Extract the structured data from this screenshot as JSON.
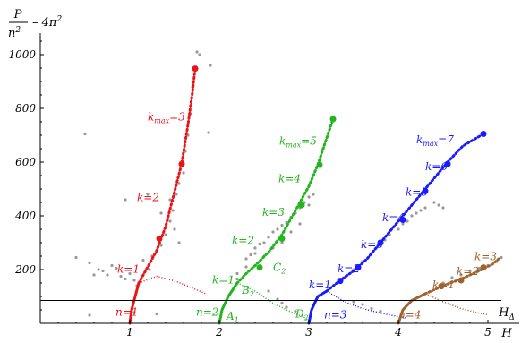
{
  "chart_data": {
    "type": "line",
    "title": "",
    "x_axis": {
      "label_num": "H",
      "label_num_sub": "Δ",
      "label_den": "H",
      "range": [
        0,
        5.15
      ],
      "ticks": [
        1,
        2,
        3,
        4,
        5
      ],
      "tick_labels": [
        "1",
        "2",
        "3",
        "4",
        "5"
      ]
    },
    "y_axis": {
      "label_num": "P",
      "label_den": "n",
      "label_den_sup": "2",
      "label_suffix": "– 4π",
      "label_suffix_sup": "2",
      "range": [
        0,
        1080
      ],
      "ticks": [
        200,
        400,
        600,
        800,
        1000
      ],
      "tick_labels": [
        "200",
        "400",
        "600",
        "800",
        "1000"
      ]
    },
    "threshold_y": 85,
    "series": [
      {
        "n": 1,
        "color": "#e8141a",
        "solid": [
          [
            1.0,
            0
          ],
          [
            1.02,
            50
          ],
          [
            1.06,
            100
          ],
          [
            1.1,
            150
          ]
        ],
        "dotted_up": [
          [
            1.1,
            150
          ],
          [
            1.2,
            210
          ],
          [
            1.3,
            270
          ],
          [
            1.4,
            360
          ],
          [
            1.5,
            490
          ],
          [
            1.58,
            595
          ],
          [
            1.65,
            740
          ],
          [
            1.7,
            860
          ],
          [
            1.73,
            950
          ]
        ],
        "dotted_down": [
          [
            1.1,
            150
          ],
          [
            1.3,
            175
          ],
          [
            1.5,
            158
          ],
          [
            1.65,
            138
          ],
          [
            1.78,
            120
          ],
          [
            1.85,
            110
          ]
        ],
        "markers": [
          [
            1.33,
            315
          ],
          [
            1.58,
            593
          ],
          [
            1.73,
            948
          ]
        ]
      },
      {
        "n": 2,
        "color": "#22b51e",
        "solid": [
          [
            2.0,
            0
          ],
          [
            2.03,
            50
          ],
          [
            2.1,
            100
          ],
          [
            2.2,
            150
          ]
        ],
        "dotted_up": [
          [
            2.2,
            150
          ],
          [
            2.3,
            185
          ],
          [
            2.4,
            215
          ],
          [
            2.55,
            265
          ],
          [
            2.7,
            330
          ],
          [
            2.85,
            420
          ],
          [
            3.0,
            510
          ],
          [
            3.1,
            590
          ],
          [
            3.18,
            670
          ],
          [
            3.27,
            760
          ]
        ],
        "dotted_down": [
          [
            2.2,
            150
          ],
          [
            2.4,
            120
          ],
          [
            2.6,
            75
          ],
          [
            2.8,
            42
          ],
          [
            2.95,
            22
          ],
          [
            3.0,
            10
          ]
        ],
        "markers": [
          [
            2.45,
            208
          ],
          [
            2.7,
            315
          ],
          [
            2.92,
            440
          ],
          [
            3.12,
            590
          ],
          [
            3.27,
            760
          ]
        ]
      },
      {
        "n": 3,
        "color": "#1a1aff",
        "solid": [
          [
            3.0,
            0
          ],
          [
            3.03,
            50
          ],
          [
            3.1,
            100
          ],
          [
            3.2,
            120
          ]
        ],
        "dotted_up": [
          [
            3.2,
            120
          ],
          [
            3.35,
            160
          ],
          [
            3.5,
            195
          ],
          [
            3.65,
            240
          ],
          [
            3.8,
            300
          ],
          [
            3.95,
            360
          ],
          [
            4.1,
            420
          ],
          [
            4.25,
            480
          ],
          [
            4.4,
            540
          ],
          [
            4.55,
            600
          ],
          [
            4.72,
            660
          ],
          [
            4.95,
            705
          ]
        ],
        "dotted_down": [
          [
            3.2,
            120
          ],
          [
            3.4,
            80
          ],
          [
            3.6,
            55
          ],
          [
            3.8,
            38
          ],
          [
            4.0,
            25
          ],
          [
            4.1,
            20
          ]
        ],
        "markers": [
          [
            3.35,
            158
          ],
          [
            3.55,
            208
          ],
          [
            3.8,
            300
          ],
          [
            4.05,
            385
          ],
          [
            4.3,
            492
          ],
          [
            4.55,
            593
          ],
          [
            4.95,
            705
          ]
        ]
      },
      {
        "n": 4,
        "color": "#a0622d",
        "solid": [
          [
            4.0,
            0
          ],
          [
            4.05,
            50
          ],
          [
            4.15,
            85
          ],
          [
            4.3,
            110
          ]
        ],
        "dotted_up": [
          [
            4.3,
            110
          ],
          [
            4.5,
            140
          ],
          [
            4.7,
            165
          ],
          [
            4.9,
            195
          ],
          [
            5.05,
            220
          ],
          [
            5.12,
            240
          ]
        ],
        "dotted_down": [
          [
            4.3,
            110
          ],
          [
            4.5,
            80
          ],
          [
            4.7,
            55
          ],
          [
            4.9,
            38
          ],
          [
            5.0,
            32
          ]
        ],
        "markers": [
          [
            4.48,
            138
          ],
          [
            4.7,
            160
          ],
          [
            4.95,
            208
          ]
        ]
      }
    ],
    "scatter": [
      [
        0.4,
        245
      ],
      [
        0.5,
        705
      ],
      [
        0.55,
        225
      ],
      [
        0.6,
        180
      ],
      [
        0.65,
        200
      ],
      [
        0.7,
        195
      ],
      [
        0.75,
        180
      ],
      [
        0.8,
        215
      ],
      [
        0.85,
        205
      ],
      [
        0.9,
        175
      ],
      [
        0.95,
        165
      ],
      [
        1.0,
        185
      ],
      [
        1.05,
        160
      ],
      [
        1.08,
        140
      ],
      [
        1.15,
        235
      ],
      [
        1.22,
        200
      ],
      [
        1.25,
        250
      ],
      [
        1.3,
        270
      ],
      [
        1.35,
        290
      ],
      [
        1.4,
        330
      ],
      [
        1.45,
        380
      ],
      [
        1.48,
        420
      ],
      [
        1.52,
        480
      ],
      [
        1.55,
        520
      ],
      [
        1.6,
        560
      ],
      [
        1.62,
        640
      ],
      [
        1.65,
        700
      ],
      [
        1.68,
        780
      ],
      [
        1.7,
        880
      ],
      [
        1.75,
        1010
      ],
      [
        1.78,
        1000
      ],
      [
        1.9,
        960
      ],
      [
        1.88,
        710
      ],
      [
        0.95,
        460
      ],
      [
        1.2,
        480
      ],
      [
        1.35,
        410
      ],
      [
        1.45,
        460
      ],
      [
        1.5,
        350
      ],
      [
        1.55,
        300
      ],
      [
        1.3,
        35
      ],
      [
        0.55,
        30
      ],
      [
        1.05,
        40
      ],
      [
        2.2,
        165
      ],
      [
        2.3,
        210
      ],
      [
        2.35,
        255
      ],
      [
        2.4,
        280
      ],
      [
        2.45,
        295
      ],
      [
        2.5,
        300
      ],
      [
        2.55,
        320
      ],
      [
        2.6,
        340
      ],
      [
        2.65,
        350
      ],
      [
        2.7,
        365
      ],
      [
        2.75,
        375
      ],
      [
        2.8,
        395
      ],
      [
        2.85,
        410
      ],
      [
        2.9,
        430
      ],
      [
        2.95,
        450
      ],
      [
        3.0,
        470
      ],
      [
        3.05,
        480
      ],
      [
        2.5,
        250
      ],
      [
        2.6,
        280
      ],
      [
        2.7,
        300
      ],
      [
        2.8,
        340
      ],
      [
        2.9,
        370
      ],
      [
        3.0,
        440
      ],
      [
        2.2,
        185
      ],
      [
        2.3,
        240
      ],
      [
        2.4,
        260
      ],
      [
        2.55,
        120
      ],
      [
        2.65,
        90
      ],
      [
        2.7,
        75
      ],
      [
        2.75,
        60
      ],
      [
        2.85,
        45
      ],
      [
        3.4,
        170
      ],
      [
        3.5,
        200
      ],
      [
        3.55,
        215
      ],
      [
        3.6,
        230
      ],
      [
        3.7,
        260
      ],
      [
        3.75,
        280
      ],
      [
        3.85,
        310
      ],
      [
        3.9,
        330
      ],
      [
        4.0,
        350
      ],
      [
        4.05,
        370
      ],
      [
        4.1,
        380
      ],
      [
        4.15,
        400
      ],
      [
        4.2,
        410
      ],
      [
        4.25,
        420
      ],
      [
        4.3,
        430
      ],
      [
        4.4,
        450
      ],
      [
        4.45,
        440
      ],
      [
        4.5,
        430
      ],
      [
        3.5,
        80
      ],
      [
        3.6,
        70
      ],
      [
        3.7,
        55
      ],
      [
        3.8,
        45
      ],
      [
        4.5,
        150
      ],
      [
        4.6,
        170
      ],
      [
        4.7,
        180
      ],
      [
        4.8,
        195
      ],
      [
        4.9,
        205
      ],
      [
        5.0,
        215
      ],
      [
        5.1,
        230
      ],
      [
        5.15,
        245
      ]
    ],
    "annotations": [
      {
        "text": "n=1",
        "x": 0.84,
        "y": 28,
        "color": "#e8141a"
      },
      {
        "text": "n=2",
        "x": 1.74,
        "y": 28,
        "color": "#22b51e"
      },
      {
        "text": "n=3",
        "x": 3.17,
        "y": 18,
        "color": "#1a1aff"
      },
      {
        "text": "n=4",
        "x": 4.0,
        "y": 18,
        "color": "#a0622d"
      },
      {
        "text": "k=1",
        "x": 0.86,
        "y": 188,
        "color": "#e8141a"
      },
      {
        "text": "k=2",
        "x": 1.08,
        "y": 455,
        "color": "#e8141a"
      },
      {
        "text": "k",
        "sub": "max",
        "suffix": "=3",
        "x": 1.2,
        "y": 755,
        "color": "#e8141a"
      },
      {
        "text": "k=1",
        "x": 1.92,
        "y": 148,
        "color": "#22b51e"
      },
      {
        "text": "k=2",
        "x": 2.14,
        "y": 295,
        "color": "#22b51e"
      },
      {
        "text": "k=3",
        "x": 2.48,
        "y": 400,
        "color": "#22b51e"
      },
      {
        "text": "k=4",
        "x": 2.66,
        "y": 525,
        "color": "#22b51e"
      },
      {
        "text": "k",
        "sub": "max",
        "suffix": "=5",
        "x": 2.67,
        "y": 665,
        "color": "#22b51e"
      },
      {
        "text": "k=1",
        "x": 3.0,
        "y": 130,
        "color": "#1a1aff"
      },
      {
        "text": "k=2",
        "x": 3.32,
        "y": 190,
        "color": "#1a1aff"
      },
      {
        "text": "k=3",
        "x": 3.58,
        "y": 280,
        "color": "#1a1aff"
      },
      {
        "text": "k=4",
        "x": 3.82,
        "y": 380,
        "color": "#1a1aff"
      },
      {
        "text": "k=5",
        "x": 4.08,
        "y": 475,
        "color": "#1a1aff"
      },
      {
        "text": "k=6",
        "x": 4.3,
        "y": 570,
        "color": "#1a1aff"
      },
      {
        "text": "k",
        "sub": "max",
        "suffix": "=7",
        "x": 4.2,
        "y": 670,
        "color": "#1a1aff"
      },
      {
        "text": "k=1",
        "x": 4.38,
        "y": 130,
        "color": "#a0622d"
      },
      {
        "text": "k=2",
        "x": 4.65,
        "y": 180,
        "color": "#a0622d"
      },
      {
        "text": "k=3",
        "x": 4.85,
        "y": 235,
        "color": "#a0622d"
      },
      {
        "text": "A",
        "sub": "1",
        "x": 2.08,
        "y": 14,
        "color": "#22b51e"
      },
      {
        "text": "B",
        "sub": "2",
        "x": 2.25,
        "y": 110,
        "color": "#22b51e"
      },
      {
        "text": "C",
        "sub": "2",
        "x": 2.6,
        "y": 195,
        "color": "#22b51e"
      },
      {
        "text": "D",
        "sub": "2",
        "x": 2.85,
        "y": 22,
        "color": "#22b51e"
      }
    ]
  }
}
